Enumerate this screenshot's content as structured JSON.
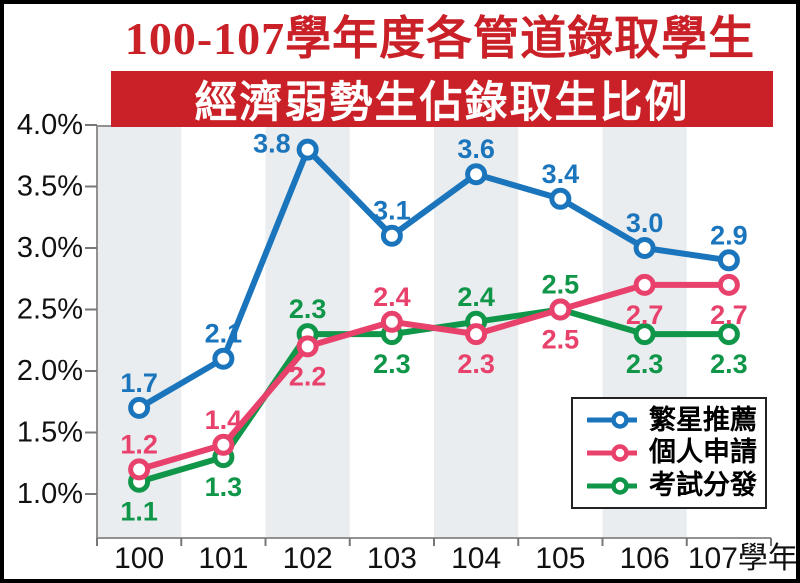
{
  "title": "100-107學年度各管道錄取學生",
  "banner": "經濟弱勢生佔錄取生比例",
  "colors": {
    "title_red": "#c92127",
    "banner_bg": "#c92127",
    "banner_text": "#ffffff",
    "band_gray": "#e9edf0",
    "axis": "#919191",
    "tick": "#777777",
    "label_text": "#111111"
  },
  "chart_data": {
    "type": "line",
    "categories": [
      "100",
      "101",
      "102",
      "103",
      "104",
      "105",
      "106",
      "107"
    ],
    "x_labels": [
      "100",
      "101",
      "102",
      "103",
      "104",
      "105",
      "106",
      "107學年"
    ],
    "ytick_values": [
      4.0,
      3.5,
      3.0,
      2.5,
      2.0,
      1.5,
      1.0
    ],
    "ytick_labels": [
      "4.0%",
      "3.5%",
      "3.0%",
      "2.5%",
      "2.0%",
      "1.5%",
      "1.0%"
    ],
    "ylim": [
      0.64,
      4.0
    ],
    "grid": "alternating-vertical-bands-on-even-columns",
    "legend_position": "bottom-right",
    "series": [
      {
        "name": "繁星推薦",
        "color": "#1b75bc",
        "values": [
          1.7,
          2.1,
          3.8,
          3.1,
          3.6,
          3.4,
          3.0,
          2.9
        ],
        "label_pos": [
          "above",
          "above",
          "left",
          "above",
          "above",
          "above",
          "above",
          "above"
        ]
      },
      {
        "name": "個人申請",
        "color": "#e8416b",
        "values": [
          1.2,
          1.4,
          2.2,
          2.4,
          2.3,
          2.5,
          2.7,
          2.7
        ],
        "label_pos": [
          "above",
          "above",
          "below",
          "above",
          "below",
          "below",
          "below",
          "below"
        ]
      },
      {
        "name": "考試分發",
        "color": "#0f9648",
        "values": [
          1.1,
          1.3,
          2.3,
          2.3,
          2.4,
          2.5,
          2.3,
          2.3
        ],
        "label_pos": [
          "below",
          "below",
          "above",
          "below",
          "above",
          "above",
          "below",
          "below"
        ]
      }
    ]
  }
}
